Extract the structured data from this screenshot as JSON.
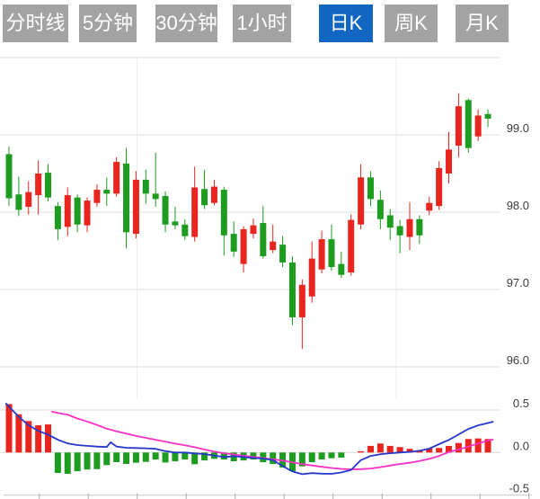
{
  "tabs": {
    "items": [
      {
        "label": "分时线",
        "name": "tab-timeline",
        "active": false
      },
      {
        "label": "5分钟",
        "name": "tab-5min",
        "active": false
      },
      {
        "label": "30分钟",
        "name": "tab-30min",
        "active": false
      },
      {
        "label": "1小时",
        "name": "tab-1hour",
        "active": false
      },
      {
        "label": "日K",
        "name": "tab-daily-k",
        "active": true
      },
      {
        "label": "周K",
        "name": "tab-weekly-k",
        "active": false
      },
      {
        "label": "月K",
        "name": "tab-monthly-k",
        "active": false
      }
    ]
  },
  "colors": {
    "up": "#e8251e",
    "down": "#1d9c20",
    "dif_line": "#2838c8",
    "dea_line": "#f72fc7",
    "grid": "#dcdcdc",
    "grid_vertical": "#ededed",
    "axis": "#c8c8c8",
    "tick": "#adadad",
    "label": "#3c3c3c",
    "tab_bg": "#a3a3a3",
    "tab_active_bg": "#1266c2"
  },
  "chart_data": [
    {
      "type": "candlestick",
      "panel": "price",
      "title": "",
      "color_convention": "red = up (close>open), green = down (Chinese convention)",
      "num_candles": 50,
      "ylim": [
        95.9,
        100.0
      ],
      "grid": true,
      "y_gridlines": [
        100.0,
        99.0,
        98.0,
        97.0,
        96.0
      ],
      "y_labels": [
        {
          "value": 99.0,
          "text": "99.0"
        },
        {
          "value": 98.0,
          "text": "98.0"
        },
        {
          "value": 97.0,
          "text": "97.0"
        },
        {
          "value": 96.0,
          "text": "96.0"
        }
      ],
      "candles": [
        {
          "o": 98.75,
          "h": 98.85,
          "l": 98.08,
          "c": 98.18
        },
        {
          "o": 98.23,
          "h": 98.46,
          "l": 97.95,
          "c": 98.03
        },
        {
          "o": 98.07,
          "h": 98.4,
          "l": 97.97,
          "c": 98.26
        },
        {
          "o": 98.22,
          "h": 98.67,
          "l": 97.97,
          "c": 98.5
        },
        {
          "o": 98.51,
          "h": 98.62,
          "l": 98.14,
          "c": 98.19
        },
        {
          "o": 98.08,
          "h": 98.13,
          "l": 97.64,
          "c": 97.78
        },
        {
          "o": 97.81,
          "h": 98.32,
          "l": 97.69,
          "c": 98.22
        },
        {
          "o": 98.19,
          "h": 98.23,
          "l": 97.74,
          "c": 97.84
        },
        {
          "o": 97.83,
          "h": 98.19,
          "l": 97.74,
          "c": 98.15
        },
        {
          "o": 98.12,
          "h": 98.36,
          "l": 98.07,
          "c": 98.29
        },
        {
          "o": 98.29,
          "h": 98.45,
          "l": 98.08,
          "c": 98.24
        },
        {
          "o": 98.24,
          "h": 98.71,
          "l": 98.2,
          "c": 98.65
        },
        {
          "o": 98.63,
          "h": 98.83,
          "l": 97.53,
          "c": 97.74
        },
        {
          "o": 97.72,
          "h": 98.53,
          "l": 97.66,
          "c": 98.42
        },
        {
          "o": 98.42,
          "h": 98.55,
          "l": 98.11,
          "c": 98.24
        },
        {
          "o": 98.24,
          "h": 98.77,
          "l": 98.07,
          "c": 98.17
        },
        {
          "o": 98.21,
          "h": 98.27,
          "l": 97.74,
          "c": 97.84
        },
        {
          "o": 97.88,
          "h": 98.07,
          "l": 97.78,
          "c": 97.83
        },
        {
          "o": 97.84,
          "h": 97.91,
          "l": 97.64,
          "c": 97.69
        },
        {
          "o": 97.68,
          "h": 98.59,
          "l": 97.62,
          "c": 98.32
        },
        {
          "o": 98.3,
          "h": 98.55,
          "l": 98.04,
          "c": 98.09
        },
        {
          "o": 98.12,
          "h": 98.42,
          "l": 98.09,
          "c": 98.33
        },
        {
          "o": 98.29,
          "h": 98.33,
          "l": 97.44,
          "c": 97.7
        },
        {
          "o": 97.72,
          "h": 97.88,
          "l": 97.42,
          "c": 97.49
        },
        {
          "o": 97.33,
          "h": 97.82,
          "l": 97.22,
          "c": 97.78
        },
        {
          "o": 97.72,
          "h": 97.92,
          "l": 97.66,
          "c": 97.83
        },
        {
          "o": 97.86,
          "h": 98.08,
          "l": 97.4,
          "c": 97.43
        },
        {
          "o": 97.51,
          "h": 97.84,
          "l": 97.47,
          "c": 97.62
        },
        {
          "o": 97.58,
          "h": 97.69,
          "l": 97.29,
          "c": 97.35
        },
        {
          "o": 97.35,
          "h": 97.43,
          "l": 96.54,
          "c": 96.64
        },
        {
          "o": 96.64,
          "h": 97.13,
          "l": 96.23,
          "c": 97.06
        },
        {
          "o": 96.91,
          "h": 97.62,
          "l": 96.83,
          "c": 97.4
        },
        {
          "o": 97.26,
          "h": 97.76,
          "l": 97.21,
          "c": 97.65
        },
        {
          "o": 97.65,
          "h": 97.84,
          "l": 97.24,
          "c": 97.29
        },
        {
          "o": 97.33,
          "h": 97.49,
          "l": 97.15,
          "c": 97.19
        },
        {
          "o": 97.22,
          "h": 97.97,
          "l": 97.18,
          "c": 97.9
        },
        {
          "o": 97.84,
          "h": 98.62,
          "l": 97.78,
          "c": 98.45
        },
        {
          "o": 98.45,
          "h": 98.53,
          "l": 98.08,
          "c": 98.17
        },
        {
          "o": 98.16,
          "h": 98.28,
          "l": 97.78,
          "c": 97.91
        },
        {
          "o": 97.96,
          "h": 98.04,
          "l": 97.64,
          "c": 97.8
        },
        {
          "o": 97.82,
          "h": 97.9,
          "l": 97.47,
          "c": 97.7
        },
        {
          "o": 97.68,
          "h": 98.13,
          "l": 97.51,
          "c": 97.91
        },
        {
          "o": 97.91,
          "h": 97.96,
          "l": 97.59,
          "c": 97.7
        },
        {
          "o": 98.02,
          "h": 98.2,
          "l": 97.96,
          "c": 98.12
        },
        {
          "o": 98.08,
          "h": 98.66,
          "l": 98.03,
          "c": 98.57
        },
        {
          "o": 98.5,
          "h": 99.04,
          "l": 98.37,
          "c": 98.81
        },
        {
          "o": 98.86,
          "h": 99.54,
          "l": 98.71,
          "c": 99.37
        },
        {
          "o": 99.45,
          "h": 99.47,
          "l": 98.77,
          "c": 98.83
        },
        {
          "o": 98.98,
          "h": 99.33,
          "l": 98.92,
          "c": 99.25
        },
        {
          "o": 99.27,
          "h": 99.33,
          "l": 99.1,
          "c": 99.21
        }
      ]
    },
    {
      "type": "bar",
      "panel": "macd-indicator",
      "title": "",
      "ylim": [
        -0.55,
        0.55
      ],
      "grid": true,
      "y_gridlines": [
        0.5,
        0.0
      ],
      "y_labels": [
        {
          "value": 0.5,
          "text": "0.5"
        },
        {
          "value": 0.0,
          "text": "0.0"
        },
        {
          "value": -0.5,
          "text": "-0.5"
        }
      ],
      "histogram": [
        0.57,
        0.45,
        0.37,
        0.32,
        0.33,
        -0.24,
        -0.25,
        -0.22,
        -0.2,
        -0.195,
        -0.148,
        -0.113,
        -0.134,
        -0.12,
        -0.11,
        -0.082,
        -0.117,
        -0.103,
        -0.082,
        -0.138,
        -0.093,
        -0.074,
        -0.082,
        -0.103,
        -0.093,
        -0.082,
        -0.114,
        -0.135,
        -0.178,
        -0.22,
        -0.163,
        -0.114,
        -0.082,
        -0.067,
        -0.06,
        0,
        0.015,
        0.078,
        0.106,
        0.078,
        0.064,
        0.043,
        0.028,
        0.05,
        0.053,
        0.077,
        0.112,
        0.159,
        0.165,
        0.159
      ],
      "dif_line_points": [
        [
          -0.3,
          0.575
        ],
        [
          0,
          0.54
        ],
        [
          1,
          0.42
        ],
        [
          2,
          0.32
        ],
        [
          3,
          0.255
        ],
        [
          4,
          0.21
        ],
        [
          5,
          0.15
        ],
        [
          6,
          0.107
        ],
        [
          7,
          0.088
        ],
        [
          8,
          0.078
        ],
        [
          9,
          0.07
        ],
        [
          10,
          0.064
        ],
        [
          10.4,
          0.12
        ],
        [
          11,
          0.07
        ],
        [
          12,
          0.056
        ],
        [
          13,
          0.053
        ],
        [
          14,
          0.05
        ],
        [
          15,
          0.043
        ],
        [
          16,
          0.017
        ],
        [
          17,
          0.0
        ],
        [
          18,
          0.0
        ],
        [
          19,
          -0.011
        ],
        [
          20,
          -0.018
        ],
        [
          21,
          -0.036
        ],
        [
          22,
          -0.053
        ],
        [
          23,
          -0.043
        ],
        [
          24,
          -0.053
        ],
        [
          25,
          -0.064
        ],
        [
          26,
          -0.071
        ],
        [
          27,
          -0.089
        ],
        [
          28,
          -0.159
        ],
        [
          29,
          -0.223
        ],
        [
          30,
          -0.255
        ],
        [
          31,
          -0.242
        ],
        [
          32,
          -0.248
        ],
        [
          33,
          -0.25
        ],
        [
          34,
          -0.235
        ],
        [
          35,
          -0.205
        ],
        [
          36,
          -0.09
        ],
        [
          37,
          -0.04
        ],
        [
          38,
          -0.02
        ],
        [
          39,
          -0.008
        ],
        [
          40,
          0.0
        ],
        [
          41,
          0.007
        ],
        [
          42,
          0.02
        ],
        [
          43,
          0.045
        ],
        [
          44,
          0.098
        ],
        [
          45,
          0.148
        ],
        [
          46,
          0.212
        ],
        [
          47,
          0.277
        ],
        [
          48,
          0.319
        ],
        [
          49,
          0.347
        ],
        [
          49.5,
          0.361
        ]
      ],
      "dea_line_points": [
        [
          4.4,
          0.48
        ],
        [
          5,
          0.465
        ],
        [
          6,
          0.445
        ],
        [
          7,
          0.4
        ],
        [
          8,
          0.365
        ],
        [
          9,
          0.325
        ],
        [
          10,
          0.28
        ],
        [
          11,
          0.25
        ],
        [
          12,
          0.222
        ],
        [
          13,
          0.195
        ],
        [
          14,
          0.172
        ],
        [
          15,
          0.15
        ],
        [
          16,
          0.128
        ],
        [
          17,
          0.105
        ],
        [
          18,
          0.085
        ],
        [
          19,
          0.062
        ],
        [
          20,
          0.035
        ],
        [
          21,
          0.012
        ],
        [
          22,
          -0.008
        ],
        [
          23,
          -0.022
        ],
        [
          24,
          -0.038
        ],
        [
          25,
          -0.052
        ],
        [
          26,
          -0.065
        ],
        [
          27,
          -0.08
        ],
        [
          28,
          -0.095
        ],
        [
          29,
          -0.115
        ],
        [
          30,
          -0.135
        ],
        [
          31,
          -0.152
        ],
        [
          32,
          -0.168
        ],
        [
          33,
          -0.182
        ],
        [
          34,
          -0.192
        ],
        [
          35,
          -0.198
        ],
        [
          36,
          -0.196
        ],
        [
          37,
          -0.188
        ],
        [
          38,
          -0.172
        ],
        [
          39,
          -0.152
        ],
        [
          40,
          -0.135
        ],
        [
          41,
          -0.12
        ],
        [
          42,
          -0.1
        ],
        [
          43,
          -0.075
        ],
        [
          44,
          -0.04
        ],
        [
          45,
          0.005
        ],
        [
          46,
          0.035
        ],
        [
          47,
          0.07
        ],
        [
          48,
          0.106
        ],
        [
          49,
          0.141
        ],
        [
          49.5,
          0.152
        ]
      ]
    }
  ]
}
